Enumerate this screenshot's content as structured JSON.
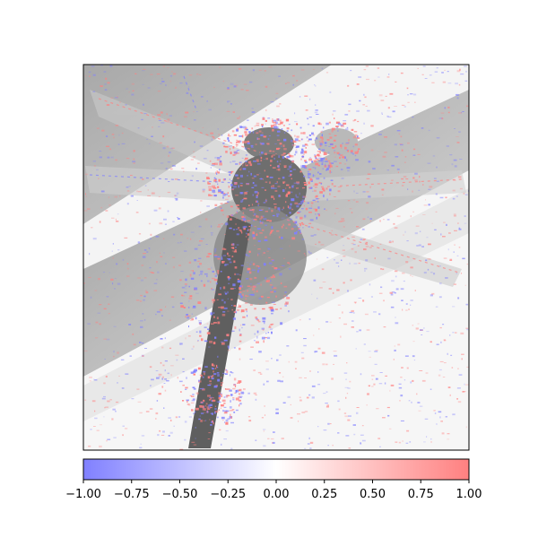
{
  "chart_data": {
    "type": "heatmap",
    "title": "",
    "xlabel": "",
    "ylabel": "",
    "main_axes": {
      "xticks": [],
      "yticks": []
    },
    "background_image": "grayscale photograph of a dragonfly perched on a window ledge",
    "overlay": "blue-white-red attribution heatmap, sparse scattered speckle pattern, stronger along the insect body and wing veins",
    "colorbar": {
      "orientation": "horizontal",
      "position": "bottom",
      "colormap": "bwr",
      "alpha": 0.5,
      "vmin": -1.0,
      "vmax": 1.0,
      "ticks": [
        -1.0,
        -0.75,
        -0.5,
        -0.25,
        0.0,
        0.25,
        0.5,
        0.75,
        1.0
      ],
      "tick_labels": [
        "−1.00",
        "−0.75",
        "−0.50",
        "−0.25",
        "0.00",
        "0.25",
        "0.50",
        "0.75",
        "1.00"
      ]
    },
    "colors": {
      "negative": "#8080ff",
      "zero": "#ffffff",
      "positive": "#ff8080",
      "axes_edge": "#000000"
    }
  }
}
